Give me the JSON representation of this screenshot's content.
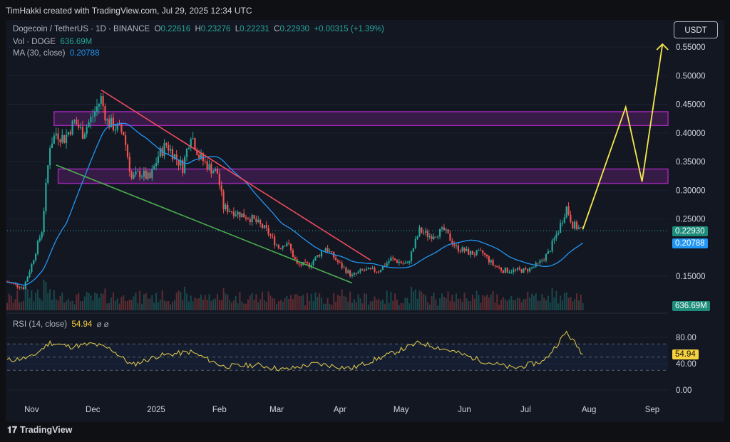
{
  "header": {
    "attribution": "TimHakki created with TradingView.com, Jul 29, 2025 12:34 UTC"
  },
  "legend": {
    "symbol": "Dogecoin / TetherUS · 1D · BINANCE",
    "open_label": "O",
    "open": "0.22616",
    "high_label": "H",
    "high": "0.23276",
    "low_label": "L",
    "low": "0.22231",
    "close_label": "C",
    "close": "0.22930",
    "change": "+0.00315 (+1.39%)",
    "vol_label": "Vol · DOGE",
    "vol": "636.69M",
    "ma_label": "MA (30, close)",
    "ma": "0.20788",
    "rsi_label": "RSI (14, close)",
    "rsi": "54.94",
    "rsi_icons": "⌀ ⌀"
  },
  "currency_button": "USDT",
  "price_tags": {
    "last": "0.22930",
    "ma": "0.20788",
    "volume": "636.69M",
    "rsi": "54.94"
  },
  "colors": {
    "up": "#26a69a",
    "down": "#ef5350",
    "ma": "#2196f3",
    "rsi": "#d4c24a",
    "zone": "#9c27b0",
    "resistance": "#ef4b5f",
    "support": "#4caf50",
    "projection": "#f5e94a"
  },
  "footer": {
    "brand": "TradingView"
  },
  "chart_data": {
    "type": "candlestick",
    "title": "Dogecoin / TetherUS · 1D · BINANCE",
    "price_axis": {
      "ticks": [
        "0.55000",
        "0.50000",
        "0.45000",
        "0.40000",
        "0.35000",
        "0.30000",
        "0.25000",
        "0.15000"
      ],
      "range": [
        0.09,
        0.58
      ]
    },
    "rsi_axis": {
      "ticks": [
        "80.00",
        "40.00",
        "0.00"
      ],
      "bands": [
        70,
        50,
        30
      ]
    },
    "x_axis": {
      "ticks": [
        "Nov",
        "Dec",
        "2025",
        "Feb",
        "Mar",
        "Apr",
        "May",
        "Jun",
        "Jul",
        "Aug",
        "Sep"
      ]
    },
    "price_path": [
      [
        "2024-10-20",
        0.14
      ],
      [
        "2024-10-28",
        0.13
      ],
      [
        "2024-11-01",
        0.17
      ],
      [
        "2024-11-06",
        0.23
      ],
      [
        "2024-11-10",
        0.38
      ],
      [
        "2024-11-13",
        0.4
      ],
      [
        "2024-11-17",
        0.39
      ],
      [
        "2024-11-22",
        0.42
      ],
      [
        "2024-11-26",
        0.4
      ],
      [
        "2024-12-01",
        0.43
      ],
      [
        "2024-12-05",
        0.46
      ],
      [
        "2024-12-08",
        0.42
      ],
      [
        "2024-12-12",
        0.41
      ],
      [
        "2024-12-16",
        0.4
      ],
      [
        "2024-12-20",
        0.32
      ],
      [
        "2024-12-24",
        0.33
      ],
      [
        "2024-12-29",
        0.32
      ],
      [
        "2025-01-02",
        0.36
      ],
      [
        "2025-01-06",
        0.38
      ],
      [
        "2025-01-10",
        0.36
      ],
      [
        "2025-01-14",
        0.34
      ],
      [
        "2025-01-18",
        0.4
      ],
      [
        "2025-01-22",
        0.36
      ],
      [
        "2025-01-27",
        0.34
      ],
      [
        "2025-01-31",
        0.33
      ],
      [
        "2025-02-03",
        0.27
      ],
      [
        "2025-02-10",
        0.26
      ],
      [
        "2025-02-17",
        0.25
      ],
      [
        "2025-02-24",
        0.23
      ],
      [
        "2025-03-02",
        0.2
      ],
      [
        "2025-03-06",
        0.21
      ],
      [
        "2025-03-11",
        0.17
      ],
      [
        "2025-03-17",
        0.17
      ],
      [
        "2025-03-25",
        0.2
      ],
      [
        "2025-04-01",
        0.17
      ],
      [
        "2025-04-07",
        0.15
      ],
      [
        "2025-04-12",
        0.16
      ],
      [
        "2025-04-20",
        0.16
      ],
      [
        "2025-04-26",
        0.18
      ],
      [
        "2025-05-04",
        0.17
      ],
      [
        "2025-05-10",
        0.23
      ],
      [
        "2025-05-15",
        0.22
      ],
      [
        "2025-05-22",
        0.23
      ],
      [
        "2025-05-28",
        0.2
      ],
      [
        "2025-06-04",
        0.19
      ],
      [
        "2025-06-10",
        0.19
      ],
      [
        "2025-06-15",
        0.17
      ],
      [
        "2025-06-20",
        0.16
      ],
      [
        "2025-06-25",
        0.16
      ],
      [
        "2025-07-01",
        0.16
      ],
      [
        "2025-07-07",
        0.17
      ],
      [
        "2025-07-12",
        0.19
      ],
      [
        "2025-07-17",
        0.23
      ],
      [
        "2025-07-21",
        0.27
      ],
      [
        "2025-07-24",
        0.24
      ],
      [
        "2025-07-29",
        0.2293
      ]
    ],
    "rsi_path": [
      [
        "2024-10-20",
        45
      ],
      [
        "2024-11-01",
        50
      ],
      [
        "2024-11-10",
        72
      ],
      [
        "2024-11-20",
        66
      ],
      [
        "2024-12-01",
        70
      ],
      [
        "2024-12-10",
        62
      ],
      [
        "2024-12-20",
        38
      ],
      [
        "2025-01-02",
        52
      ],
      [
        "2025-01-18",
        58
      ],
      [
        "2025-02-03",
        36
      ],
      [
        "2025-02-20",
        38
      ],
      [
        "2025-03-05",
        31
      ],
      [
        "2025-03-20",
        40
      ],
      [
        "2025-04-07",
        33
      ],
      [
        "2025-04-25",
        54
      ],
      [
        "2025-05-10",
        72
      ],
      [
        "2025-05-25",
        60
      ],
      [
        "2025-06-10",
        44
      ],
      [
        "2025-06-25",
        33
      ],
      [
        "2025-07-10",
        44
      ],
      [
        "2025-07-21",
        88
      ],
      [
        "2025-07-29",
        54.94
      ]
    ]
  }
}
